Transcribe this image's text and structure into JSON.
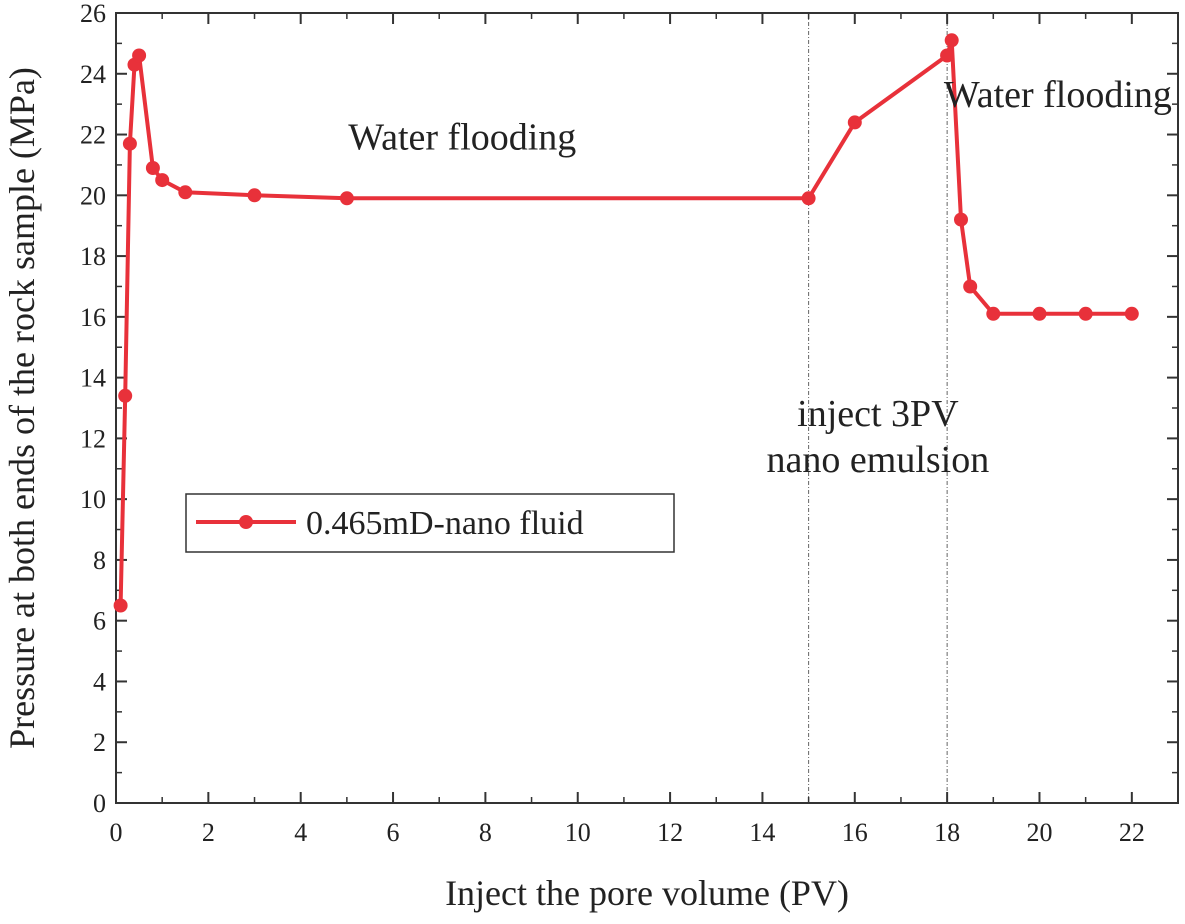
{
  "chart_data": {
    "type": "line",
    "title": "",
    "xlabel": "Inject the pore volume (PV)",
    "ylabel": "Pressure at both ends of the rock sample (MPa)",
    "xlim": [
      0,
      23
    ],
    "ylim": [
      0,
      26
    ],
    "xticks": [
      0,
      2,
      4,
      6,
      8,
      10,
      12,
      14,
      16,
      18,
      20,
      22
    ],
    "yticks": [
      0,
      2,
      4,
      6,
      8,
      10,
      12,
      14,
      16,
      18,
      20,
      22,
      24,
      26
    ],
    "grid": false,
    "legend_position": "center-left",
    "series": [
      {
        "name": "0.465mD-nano fluid",
        "color": "#e8313a",
        "marker": "circle",
        "x": [
          0.1,
          0.2,
          0.3,
          0.4,
          0.5,
          0.8,
          1.0,
          1.5,
          3,
          5,
          15,
          16,
          18,
          18.1,
          18.3,
          18.5,
          19,
          20,
          21,
          22
        ],
        "y": [
          6.5,
          13.4,
          21.7,
          24.3,
          24.6,
          20.9,
          20.5,
          20.1,
          20.0,
          19.9,
          19.9,
          22.4,
          24.6,
          25.1,
          19.2,
          17.0,
          16.1,
          16.1,
          16.1,
          16.1
        ]
      }
    ],
    "vlines": [
      15,
      18
    ],
    "annotations": [
      {
        "id": "water-flooding-1",
        "text": "Water flooding",
        "x": 7.5,
        "y": 21.5
      },
      {
        "id": "water-flooding-2",
        "text": "Water flooding",
        "x": 20.4,
        "y": 22.9
      },
      {
        "id": "inject-line-1",
        "text": "inject 3PV",
        "x": 16.5,
        "y": 12.4
      },
      {
        "id": "inject-line-2",
        "text": "nano emulsion",
        "x": 16.5,
        "y": 10.9
      }
    ]
  }
}
